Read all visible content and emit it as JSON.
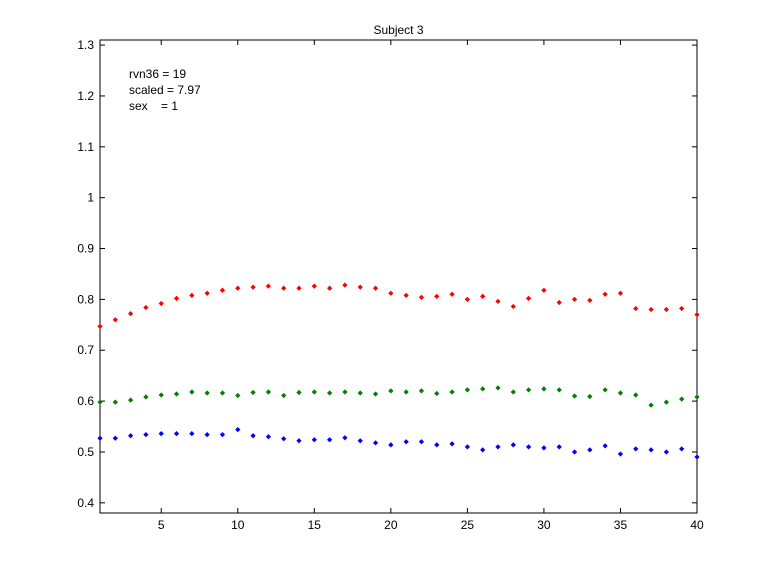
{
  "chart_data": {
    "type": "scatter",
    "title": "Subject 3",
    "xlabel": "",
    "ylabel": "",
    "xlim": [
      1,
      40
    ],
    "ylim": [
      0.38,
      1.31
    ],
    "xticks": [
      5,
      10,
      15,
      20,
      25,
      30,
      35,
      40
    ],
    "yticks": [
      0.4,
      0.5,
      0.6,
      0.7,
      0.8,
      0.9,
      1,
      1.1,
      1.2,
      1.3
    ],
    "grid": false,
    "annotations": [
      "rvn36 = 19",
      "scaled = 7.97",
      "sex    = 1"
    ],
    "series": [
      {
        "color": "#ff0000",
        "x": [
          1,
          2,
          3,
          4,
          5,
          6,
          7,
          8,
          9,
          10,
          11,
          12,
          13,
          14,
          15,
          16,
          17,
          18,
          19,
          20,
          21,
          22,
          23,
          24,
          25,
          26,
          27,
          28,
          29,
          30,
          31,
          32,
          33,
          34,
          35,
          36,
          37,
          38,
          39,
          40
        ],
        "y": [
          0.747,
          0.76,
          0.772,
          0.784,
          0.792,
          0.802,
          0.808,
          0.812,
          0.818,
          0.822,
          0.824,
          0.826,
          0.822,
          0.822,
          0.826,
          0.822,
          0.828,
          0.824,
          0.822,
          0.812,
          0.808,
          0.804,
          0.806,
          0.81,
          0.8,
          0.806,
          0.796,
          0.786,
          0.802,
          0.818,
          0.794,
          0.8,
          0.798,
          0.81,
          0.812,
          0.782,
          0.78,
          0.78,
          0.782,
          0.77
        ]
      },
      {
        "color": "#008000",
        "x": [
          1,
          2,
          3,
          4,
          5,
          6,
          7,
          8,
          9,
          10,
          11,
          12,
          13,
          14,
          15,
          16,
          17,
          18,
          19,
          20,
          21,
          22,
          23,
          24,
          25,
          26,
          27,
          28,
          29,
          30,
          31,
          32,
          33,
          34,
          35,
          36,
          37,
          38,
          39,
          40
        ],
        "y": [
          0.598,
          0.598,
          0.602,
          0.608,
          0.612,
          0.614,
          0.618,
          0.616,
          0.616,
          0.611,
          0.617,
          0.618,
          0.611,
          0.617,
          0.618,
          0.616,
          0.618,
          0.616,
          0.614,
          0.62,
          0.618,
          0.62,
          0.615,
          0.618,
          0.622,
          0.624,
          0.626,
          0.618,
          0.622,
          0.624,
          0.622,
          0.61,
          0.609,
          0.622,
          0.616,
          0.612,
          0.592,
          0.598,
          0.604,
          0.608
        ]
      },
      {
        "color": "#0000ff",
        "x": [
          1,
          2,
          3,
          4,
          5,
          6,
          7,
          8,
          9,
          10,
          11,
          12,
          13,
          14,
          15,
          16,
          17,
          18,
          19,
          20,
          21,
          22,
          23,
          24,
          25,
          26,
          27,
          28,
          29,
          30,
          31,
          32,
          33,
          34,
          35,
          36,
          37,
          38,
          39,
          40
        ],
        "y": [
          0.527,
          0.527,
          0.532,
          0.534,
          0.536,
          0.536,
          0.536,
          0.534,
          0.534,
          0.544,
          0.532,
          0.53,
          0.526,
          0.522,
          0.524,
          0.524,
          0.528,
          0.522,
          0.518,
          0.514,
          0.52,
          0.52,
          0.514,
          0.516,
          0.51,
          0.504,
          0.51,
          0.514,
          0.51,
          0.508,
          0.51,
          0.5,
          0.504,
          0.512,
          0.496,
          0.506,
          0.504,
          0.5,
          0.506,
          0.49
        ]
      }
    ]
  }
}
